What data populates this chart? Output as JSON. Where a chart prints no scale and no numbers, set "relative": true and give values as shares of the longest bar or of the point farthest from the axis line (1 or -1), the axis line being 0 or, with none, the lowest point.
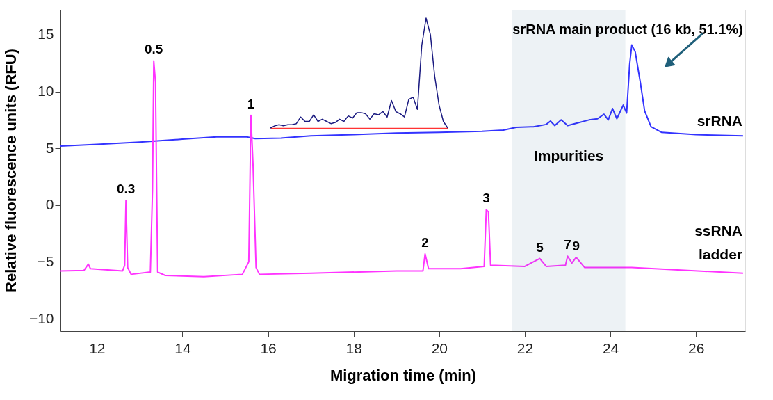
{
  "chart_data": [
    {
      "type": "line",
      "xlabel": "Migration time (min)",
      "ylabel": "Relative fluorescence units (RFU)",
      "xlim": [
        11.15,
        27.15
      ],
      "ylim": [
        -11.1,
        17.2
      ],
      "xticks": [
        12,
        14,
        16,
        18,
        20,
        22,
        24,
        26
      ],
      "yticks": [
        -10,
        -5,
        0,
        5,
        10,
        15
      ],
      "grid": false,
      "legend": false,
      "series": [
        {
          "name": "srRNA",
          "color": "#3333ff",
          "x": [
            11.15,
            12,
            13,
            14,
            14.8,
            15.5,
            15.7,
            16.3,
            17,
            18,
            19,
            20,
            21,
            21.5,
            21.8,
            22.2,
            22.5,
            22.6,
            22.7,
            22.85,
            23.0,
            23.2,
            23.5,
            23.7,
            23.85,
            23.95,
            24.05,
            24.15,
            24.3,
            24.38,
            24.45,
            24.5,
            24.58,
            24.7,
            24.8,
            24.95,
            25.2,
            26,
            27.1
          ],
          "values": [
            5.2,
            5.35,
            5.55,
            5.8,
            6.0,
            6.0,
            5.85,
            5.9,
            6.1,
            6.2,
            6.35,
            6.4,
            6.5,
            6.6,
            6.85,
            6.9,
            7.1,
            7.4,
            7.0,
            7.5,
            7.0,
            7.2,
            7.5,
            7.6,
            8.0,
            7.5,
            8.5,
            7.6,
            8.8,
            8.1,
            12.4,
            14.1,
            13.5,
            10.8,
            8.3,
            6.9,
            6.4,
            6.2,
            6.1
          ]
        },
        {
          "name": "ssRNA ladder",
          "color": "#ff33ff",
          "x": [
            11.15,
            11.7,
            11.8,
            11.85,
            12.6,
            12.65,
            12.68,
            12.72,
            12.8,
            13.25,
            13.3,
            13.33,
            13.37,
            13.42,
            13.6,
            14.5,
            15.4,
            15.55,
            15.6,
            15.65,
            15.72,
            15.8,
            17,
            19,
            19.62,
            19.67,
            19.75,
            20.5,
            21.05,
            21.1,
            21.15,
            21.2,
            22.0,
            22.35,
            22.5,
            22.95,
            23.0,
            23.1,
            23.2,
            23.4,
            24.5,
            25.5,
            27.1
          ],
          "values": [
            -5.8,
            -5.75,
            -5.2,
            -5.6,
            -5.8,
            -5.3,
            0.4,
            -5.5,
            -6.1,
            -5.9,
            1.3,
            12.7,
            10.8,
            -5.9,
            -6.2,
            -6.3,
            -6.1,
            -5.0,
            7.9,
            3.5,
            -5.5,
            -6.1,
            -6.0,
            -5.8,
            -5.8,
            -4.3,
            -5.6,
            -5.6,
            -5.4,
            -0.4,
            -0.6,
            -5.3,
            -5.4,
            -4.7,
            -5.4,
            -5.3,
            -4.5,
            -5.1,
            -4.6,
            -5.5,
            -5.5,
            -5.7,
            -6.0
          ]
        }
      ],
      "bands": [
        {
          "axis": "x",
          "from": 21.7,
          "to": 24.35,
          "label": "Impurities",
          "color": "#1f5f7a"
        }
      ],
      "annotations": [
        {
          "text": "0.3",
          "x": 12.68,
          "y": 0.4
        },
        {
          "text": "0.5",
          "x": 13.33,
          "y": 12.7
        },
        {
          "text": "1",
          "x": 15.6,
          "y": 7.9
        },
        {
          "text": "2",
          "x": 19.67,
          "y": -4.3
        },
        {
          "text": "3",
          "x": 21.1,
          "y": -0.4
        },
        {
          "text": "5",
          "x": 22.35,
          "y": -4.7
        },
        {
          "text": "7",
          "x": 23.0,
          "y": -4.5
        },
        {
          "text": "9",
          "x": 23.2,
          "y": -4.6
        },
        {
          "text": "srRNA main product (16 kb, 51.1%)",
          "x": 24.5,
          "y": 14.1
        }
      ]
    },
    {
      "type": "line",
      "relative": true,
      "categories": [
        null,
        null,
        null,
        null,
        null,
        null,
        null,
        null,
        null,
        null,
        null,
        null,
        null,
        null,
        null,
        null,
        null,
        null,
        null,
        null,
        null,
        null,
        null,
        null,
        null,
        null,
        null,
        null,
        null,
        null,
        null,
        null,
        null,
        null,
        null,
        null,
        null,
        null,
        null,
        null,
        null,
        null
      ],
      "series": [
        {
          "color": "#1a1a80",
          "values": [
            0,
            0.02,
            0.03,
            0.02,
            0.03,
            0.03,
            0.04,
            0.1,
            0.06,
            0.06,
            0.12,
            0.06,
            0.08,
            0.06,
            0.04,
            0.05,
            0.08,
            0.06,
            0.11,
            0.09,
            0.14,
            0.14,
            0.13,
            0.08,
            0.13,
            0.12,
            0.15,
            0.1,
            0.25,
            0.15,
            0.13,
            0.1,
            0.26,
            0.28,
            0.17,
            0.75,
            1,
            0.85,
            0.47,
            0.21,
            0.06,
            0
          ]
        }
      ]
    }
  ]
}
